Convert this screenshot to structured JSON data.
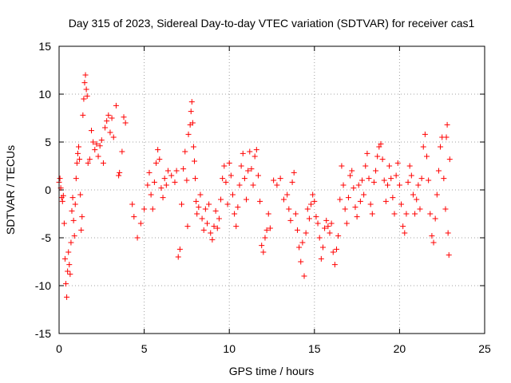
{
  "chart_data": {
    "type": "scatter",
    "title": "Day 315 of 2023, Sidereal Day-to-day VTEC variation (SDTVAR) for receiver cas1",
    "xlabel": "GPS time / hours",
    "ylabel": "SDTVAR / TECUs",
    "xlim": [
      0,
      25
    ],
    "ylim": [
      -15,
      15
    ],
    "xticks": [
      0,
      5,
      10,
      15,
      20,
      25
    ],
    "yticks": [
      -15,
      -10,
      -5,
      0,
      5,
      10,
      15
    ],
    "grid": true,
    "marker": "+",
    "series": [
      {
        "name": "SDTVAR",
        "color": "#ff0000",
        "points": [
          [
            0.0,
            0.8
          ],
          [
            0.05,
            1.2
          ],
          [
            0.1,
            0.2
          ],
          [
            0.15,
            -0.8
          ],
          [
            0.2,
            -1.2
          ],
          [
            0.25,
            -0.6
          ],
          [
            0.3,
            -3.5
          ],
          [
            0.35,
            -7.2
          ],
          [
            0.4,
            -9.8
          ],
          [
            0.45,
            -11.2
          ],
          [
            0.5,
            -8.5
          ],
          [
            0.55,
            -6.5
          ],
          [
            0.6,
            -7.8
          ],
          [
            0.65,
            -8.8
          ],
          [
            0.7,
            -5.5
          ],
          [
            0.75,
            -2.2
          ],
          [
            0.8,
            -0.8
          ],
          [
            0.85,
            -3.2
          ],
          [
            0.9,
            -4.8
          ],
          [
            0.95,
            -1.5
          ],
          [
            1.0,
            1.2
          ],
          [
            1.05,
            2.8
          ],
          [
            1.1,
            3.8
          ],
          [
            1.15,
            4.5
          ],
          [
            1.2,
            3.2
          ],
          [
            1.25,
            -0.5
          ],
          [
            1.3,
            -4.2
          ],
          [
            1.35,
            -2.8
          ],
          [
            1.4,
            7.8
          ],
          [
            1.45,
            9.5
          ],
          [
            1.5,
            11.2
          ],
          [
            1.55,
            12.0
          ],
          [
            1.6,
            10.5
          ],
          [
            1.65,
            9.8
          ],
          [
            1.7,
            2.8
          ],
          [
            1.8,
            3.2
          ],
          [
            1.9,
            6.2
          ],
          [
            2.0,
            5.0
          ],
          [
            2.1,
            4.2
          ],
          [
            2.2,
            4.8
          ],
          [
            2.3,
            3.5
          ],
          [
            2.4,
            4.6
          ],
          [
            2.5,
            5.2
          ],
          [
            2.6,
            2.8
          ],
          [
            2.7,
            6.5
          ],
          [
            2.8,
            7.2
          ],
          [
            2.9,
            7.8
          ],
          [
            3.0,
            6.0
          ],
          [
            3.1,
            7.5
          ],
          [
            3.2,
            5.5
          ],
          [
            3.35,
            8.8
          ],
          [
            3.5,
            1.5
          ],
          [
            3.55,
            1.8
          ],
          [
            3.7,
            4.0
          ],
          [
            3.8,
            7.6
          ],
          [
            3.9,
            7.0
          ],
          [
            4.3,
            -1.5
          ],
          [
            4.4,
            -2.8
          ],
          [
            4.6,
            -5.0
          ],
          [
            4.8,
            -3.5
          ],
          [
            5.0,
            -2.0
          ],
          [
            5.2,
            0.5
          ],
          [
            5.3,
            1.8
          ],
          [
            5.4,
            -0.5
          ],
          [
            5.5,
            -2.0
          ],
          [
            5.6,
            0.8
          ],
          [
            5.7,
            2.8
          ],
          [
            5.8,
            4.2
          ],
          [
            5.9,
            3.2
          ],
          [
            6.0,
            0.2
          ],
          [
            6.1,
            -0.8
          ],
          [
            6.2,
            1.2
          ],
          [
            6.3,
            0.5
          ],
          [
            6.4,
            2.0
          ],
          [
            6.6,
            1.5
          ],
          [
            6.8,
            0.8
          ],
          [
            6.9,
            2.0
          ],
          [
            7.0,
            -7.0
          ],
          [
            7.1,
            -6.2
          ],
          [
            7.2,
            -1.5
          ],
          [
            7.3,
            2.2
          ],
          [
            7.4,
            4.0
          ],
          [
            7.5,
            1.0
          ],
          [
            7.55,
            -3.8
          ],
          [
            7.6,
            5.8
          ],
          [
            7.7,
            6.8
          ],
          [
            7.75,
            8.2
          ],
          [
            7.8,
            9.2
          ],
          [
            7.85,
            7.0
          ],
          [
            7.9,
            4.5
          ],
          [
            7.95,
            3.0
          ],
          [
            8.0,
            1.2
          ],
          [
            8.05,
            -1.2
          ],
          [
            8.1,
            -2.5
          ],
          [
            8.2,
            -1.8
          ],
          [
            8.3,
            -0.5
          ],
          [
            8.4,
            -3.0
          ],
          [
            8.5,
            -4.2
          ],
          [
            8.6,
            -2.0
          ],
          [
            8.7,
            -3.5
          ],
          [
            8.8,
            -1.5
          ],
          [
            8.9,
            -4.5
          ],
          [
            9.0,
            -5.2
          ],
          [
            9.1,
            -3.8
          ],
          [
            9.2,
            -2.2
          ],
          [
            9.3,
            -4.0
          ],
          [
            9.4,
            -3.0
          ],
          [
            9.5,
            -1.0
          ],
          [
            9.6,
            1.2
          ],
          [
            9.7,
            2.5
          ],
          [
            9.8,
            0.8
          ],
          [
            9.9,
            -1.5
          ],
          [
            10.0,
            2.8
          ],
          [
            10.1,
            1.5
          ],
          [
            10.2,
            -0.5
          ],
          [
            10.3,
            -2.5
          ],
          [
            10.4,
            -3.8
          ],
          [
            10.5,
            -1.8
          ],
          [
            10.6,
            0.5
          ],
          [
            10.7,
            2.5
          ],
          [
            10.8,
            3.8
          ],
          [
            10.9,
            1.2
          ],
          [
            11.0,
            -1.0
          ],
          [
            11.1,
            2.0
          ],
          [
            11.2,
            4.0
          ],
          [
            11.3,
            2.2
          ],
          [
            11.4,
            0.5
          ],
          [
            11.5,
            3.5
          ],
          [
            11.6,
            4.2
          ],
          [
            11.7,
            1.5
          ],
          [
            11.8,
            -1.2
          ],
          [
            11.9,
            -5.8
          ],
          [
            12.0,
            -6.5
          ],
          [
            12.1,
            -5.0
          ],
          [
            12.2,
            -4.2
          ],
          [
            12.3,
            -2.5
          ],
          [
            12.4,
            -4.0
          ],
          [
            12.6,
            1.0
          ],
          [
            12.8,
            0.5
          ],
          [
            13.0,
            1.2
          ],
          [
            13.2,
            -1.0
          ],
          [
            13.4,
            -0.5
          ],
          [
            13.5,
            -2.0
          ],
          [
            13.6,
            -3.2
          ],
          [
            13.7,
            0.8
          ],
          [
            13.8,
            1.8
          ],
          [
            13.9,
            -2.5
          ],
          [
            14.0,
            -4.2
          ],
          [
            14.1,
            -6.0
          ],
          [
            14.2,
            -7.5
          ],
          [
            14.3,
            -5.5
          ],
          [
            14.4,
            -9.0
          ],
          [
            14.5,
            -4.5
          ],
          [
            14.6,
            -2.0
          ],
          [
            14.7,
            -3.0
          ],
          [
            14.8,
            -1.5
          ],
          [
            14.9,
            -0.5
          ],
          [
            15.0,
            -1.2
          ],
          [
            15.1,
            -2.8
          ],
          [
            15.2,
            -3.5
          ],
          [
            15.3,
            -5.0
          ],
          [
            15.4,
            -7.2
          ],
          [
            15.5,
            -6.0
          ],
          [
            15.6,
            -4.0
          ],
          [
            15.7,
            -3.2
          ],
          [
            15.8,
            -3.8
          ],
          [
            15.9,
            -4.5
          ],
          [
            16.0,
            -3.5
          ],
          [
            16.1,
            -6.5
          ],
          [
            16.2,
            -7.8
          ],
          [
            16.3,
            -6.2
          ],
          [
            16.4,
            -4.8
          ],
          [
            16.5,
            -1.0
          ],
          [
            16.6,
            2.5
          ],
          [
            16.7,
            0.5
          ],
          [
            16.8,
            -2.0
          ],
          [
            16.9,
            -3.5
          ],
          [
            17.0,
            -0.8
          ],
          [
            17.1,
            1.5
          ],
          [
            17.2,
            2.0
          ],
          [
            17.3,
            0.2
          ],
          [
            17.4,
            -1.8
          ],
          [
            17.5,
            -2.8
          ],
          [
            17.6,
            0.5
          ],
          [
            17.7,
            -1.2
          ],
          [
            17.8,
            1.0
          ],
          [
            17.9,
            -0.5
          ],
          [
            18.0,
            2.5
          ],
          [
            18.1,
            3.8
          ],
          [
            18.2,
            1.2
          ],
          [
            18.3,
            -1.5
          ],
          [
            18.4,
            -2.5
          ],
          [
            18.5,
            0.8
          ],
          [
            18.6,
            2.0
          ],
          [
            18.7,
            3.5
          ],
          [
            18.8,
            4.5
          ],
          [
            18.9,
            4.8
          ],
          [
            19.0,
            3.2
          ],
          [
            19.1,
            1.0
          ],
          [
            19.2,
            -1.2
          ],
          [
            19.3,
            0.5
          ],
          [
            19.4,
            2.5
          ],
          [
            19.5,
            1.2
          ],
          [
            19.6,
            -0.8
          ],
          [
            19.7,
            -2.5
          ],
          [
            19.8,
            1.5
          ],
          [
            19.9,
            2.8
          ],
          [
            20.0,
            0.5
          ],
          [
            20.1,
            -1.5
          ],
          [
            20.2,
            -3.8
          ],
          [
            20.3,
            -4.5
          ],
          [
            20.4,
            -2.5
          ],
          [
            20.5,
            0.8
          ],
          [
            20.6,
            2.5
          ],
          [
            20.7,
            1.5
          ],
          [
            20.8,
            -0.5
          ],
          [
            20.9,
            -2.5
          ],
          [
            21.0,
            -1.0
          ],
          [
            21.1,
            0.5
          ],
          [
            21.2,
            -2.0
          ],
          [
            21.3,
            1.2
          ],
          [
            21.4,
            4.5
          ],
          [
            21.5,
            5.8
          ],
          [
            21.6,
            3.5
          ],
          [
            21.7,
            1.0
          ],
          [
            21.8,
            -2.5
          ],
          [
            21.9,
            -4.8
          ],
          [
            22.0,
            -5.5
          ],
          [
            22.1,
            -3.0
          ],
          [
            22.2,
            -0.5
          ],
          [
            22.3,
            2.0
          ],
          [
            22.4,
            4.5
          ],
          [
            22.5,
            5.5
          ],
          [
            22.6,
            1.2
          ],
          [
            22.7,
            -2.0
          ],
          [
            22.75,
            5.5
          ],
          [
            22.8,
            6.8
          ],
          [
            22.85,
            -4.5
          ],
          [
            22.9,
            -6.8
          ],
          [
            22.95,
            3.2
          ]
        ]
      }
    ]
  }
}
